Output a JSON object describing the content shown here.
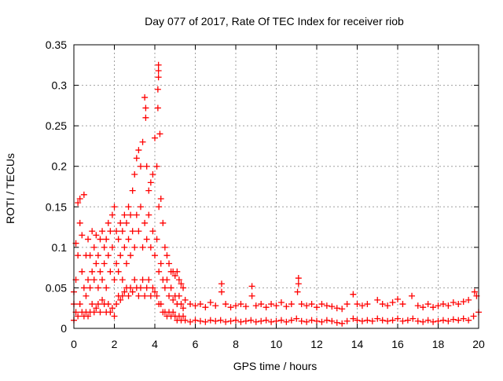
{
  "chart_data": {
    "type": "scatter",
    "title": "Day 077 of 2017, Rate Of TEC Index for receiver riob",
    "xlabel": "GPS time / hours",
    "ylabel": "ROTI / TECUs",
    "xlim": [
      0,
      20
    ],
    "ylim": [
      0,
      0.35
    ],
    "xticks": [
      "0",
      "2",
      "4",
      "6",
      "8",
      "10",
      "12",
      "14",
      "16",
      "18",
      "20"
    ],
    "yticks": [
      "0",
      "0.05",
      "0.1",
      "0.15",
      "0.2",
      "0.25",
      "0.3",
      "0.35"
    ],
    "grid": true,
    "marker": "+",
    "color": "#ff0000",
    "points": [
      [
        0.0,
        0.01
      ],
      [
        0.0,
        0.03
      ],
      [
        0.0,
        0.045
      ],
      [
        0.1,
        0.02
      ],
      [
        0.1,
        0.06
      ],
      [
        0.1,
        0.105
      ],
      [
        0.2,
        0.015
      ],
      [
        0.2,
        0.09
      ],
      [
        0.2,
        0.155
      ],
      [
        0.3,
        0.03
      ],
      [
        0.3,
        0.13
      ],
      [
        0.3,
        0.16
      ],
      [
        0.4,
        0.02
      ],
      [
        0.4,
        0.07
      ],
      [
        0.4,
        0.115
      ],
      [
        0.5,
        0.015
      ],
      [
        0.5,
        0.05
      ],
      [
        0.5,
        0.165
      ],
      [
        0.6,
        0.02
      ],
      [
        0.6,
        0.04
      ],
      [
        0.6,
        0.09
      ],
      [
        0.7,
        0.015
      ],
      [
        0.7,
        0.06
      ],
      [
        0.7,
        0.11
      ],
      [
        0.8,
        0.02
      ],
      [
        0.8,
        0.05
      ],
      [
        0.8,
        0.09
      ],
      [
        0.9,
        0.03
      ],
      [
        0.9,
        0.07
      ],
      [
        0.9,
        0.12
      ],
      [
        1.0,
        0.02
      ],
      [
        1.0,
        0.06
      ],
      [
        1.0,
        0.1
      ],
      [
        1.1,
        0.025
      ],
      [
        1.1,
        0.08
      ],
      [
        1.1,
        0.115
      ],
      [
        1.2,
        0.03
      ],
      [
        1.2,
        0.05
      ],
      [
        1.2,
        0.09
      ],
      [
        1.3,
        0.02
      ],
      [
        1.3,
        0.07
      ],
      [
        1.3,
        0.11
      ],
      [
        1.4,
        0.035
      ],
      [
        1.4,
        0.06
      ],
      [
        1.4,
        0.12
      ],
      [
        1.5,
        0.03
      ],
      [
        1.5,
        0.08
      ],
      [
        1.5,
        0.1
      ],
      [
        1.6,
        0.02
      ],
      [
        1.6,
        0.05
      ],
      [
        1.6,
        0.11
      ],
      [
        1.7,
        0.03
      ],
      [
        1.7,
        0.09
      ],
      [
        1.7,
        0.13
      ],
      [
        1.8,
        0.02
      ],
      [
        1.8,
        0.07
      ],
      [
        1.8,
        0.12
      ],
      [
        1.9,
        0.025
      ],
      [
        1.9,
        0.1
      ],
      [
        1.9,
        0.14
      ],
      [
        2.0,
        0.015
      ],
      [
        2.0,
        0.06
      ],
      [
        2.0,
        0.15
      ],
      [
        2.1,
        0.03
      ],
      [
        2.1,
        0.08
      ],
      [
        2.1,
        0.12
      ],
      [
        2.2,
        0.04
      ],
      [
        2.2,
        0.07
      ],
      [
        2.2,
        0.11
      ],
      [
        2.3,
        0.035
      ],
      [
        2.3,
        0.09
      ],
      [
        2.3,
        0.13
      ],
      [
        2.4,
        0.04
      ],
      [
        2.4,
        0.06
      ],
      [
        2.4,
        0.12
      ],
      [
        2.5,
        0.045
      ],
      [
        2.5,
        0.1
      ],
      [
        2.5,
        0.14
      ],
      [
        2.6,
        0.05
      ],
      [
        2.6,
        0.08
      ],
      [
        2.6,
        0.13
      ],
      [
        2.7,
        0.04
      ],
      [
        2.7,
        0.11
      ],
      [
        2.7,
        0.15
      ],
      [
        2.8,
        0.05
      ],
      [
        2.8,
        0.09
      ],
      [
        2.8,
        0.14
      ],
      [
        2.9,
        0.045
      ],
      [
        2.9,
        0.12
      ],
      [
        2.9,
        0.17
      ],
      [
        3.0,
        0.06
      ],
      [
        3.0,
        0.1
      ],
      [
        3.0,
        0.19
      ],
      [
        3.1,
        0.05
      ],
      [
        3.1,
        0.14
      ],
      [
        3.1,
        0.21
      ],
      [
        3.2,
        0.04
      ],
      [
        3.2,
        0.12
      ],
      [
        3.2,
        0.22
      ],
      [
        3.3,
        0.05
      ],
      [
        3.3,
        0.15
      ],
      [
        3.3,
        0.2
      ],
      [
        3.4,
        0.06
      ],
      [
        3.4,
        0.1
      ],
      [
        3.4,
        0.23
      ],
      [
        3.5,
        0.04
      ],
      [
        3.5,
        0.13
      ],
      [
        3.5,
        0.285
      ],
      [
        3.55,
        0.26
      ],
      [
        3.55,
        0.272
      ],
      [
        3.6,
        0.05
      ],
      [
        3.6,
        0.11
      ],
      [
        3.6,
        0.2
      ],
      [
        3.7,
        0.06
      ],
      [
        3.7,
        0.14
      ],
      [
        3.7,
        0.17
      ],
      [
        3.8,
        0.04
      ],
      [
        3.8,
        0.1
      ],
      [
        3.8,
        0.18
      ],
      [
        3.9,
        0.05
      ],
      [
        3.9,
        0.12
      ],
      [
        3.9,
        0.19
      ],
      [
        4.0,
        0.045
      ],
      [
        4.0,
        0.09
      ],
      [
        4.0,
        0.235
      ],
      [
        4.1,
        0.04
      ],
      [
        4.1,
        0.11
      ],
      [
        4.1,
        0.2
      ],
      [
        4.15,
        0.272
      ],
      [
        4.15,
        0.295
      ],
      [
        4.18,
        0.31
      ],
      [
        4.18,
        0.318
      ],
      [
        4.18,
        0.325
      ],
      [
        4.2,
        0.03
      ],
      [
        4.2,
        0.07
      ],
      [
        4.2,
        0.15
      ],
      [
        4.25,
        0.24
      ],
      [
        4.3,
        0.03
      ],
      [
        4.3,
        0.08
      ],
      [
        4.3,
        0.16
      ],
      [
        4.4,
        0.02
      ],
      [
        4.4,
        0.06
      ],
      [
        4.4,
        0.13
      ],
      [
        4.5,
        0.02
      ],
      [
        4.5,
        0.05
      ],
      [
        4.5,
        0.1
      ],
      [
        4.6,
        0.015
      ],
      [
        4.6,
        0.06
      ],
      [
        4.6,
        0.09
      ],
      [
        4.7,
        0.02
      ],
      [
        4.7,
        0.04
      ],
      [
        4.7,
        0.08
      ],
      [
        4.8,
        0.015
      ],
      [
        4.8,
        0.05
      ],
      [
        4.8,
        0.07
      ],
      [
        4.9,
        0.02
      ],
      [
        4.9,
        0.035
      ],
      [
        4.9,
        0.07
      ],
      [
        5.0,
        0.015
      ],
      [
        5.0,
        0.04
      ],
      [
        5.0,
        0.065
      ],
      [
        5.1,
        0.01
      ],
      [
        5.1,
        0.03
      ],
      [
        5.1,
        0.07
      ],
      [
        5.2,
        0.015
      ],
      [
        5.2,
        0.04
      ],
      [
        5.2,
        0.06
      ],
      [
        5.3,
        0.01
      ],
      [
        5.3,
        0.03
      ],
      [
        5.3,
        0.055
      ],
      [
        5.4,
        0.015
      ],
      [
        5.4,
        0.025
      ],
      [
        5.4,
        0.05
      ],
      [
        5.5,
        0.01
      ],
      [
        5.5,
        0.035
      ],
      [
        5.75,
        0.008
      ],
      [
        5.75,
        0.03
      ],
      [
        6.0,
        0.01
      ],
      [
        6.0,
        0.028
      ],
      [
        6.25,
        0.009
      ],
      [
        6.25,
        0.03
      ],
      [
        6.5,
        0.008
      ],
      [
        6.5,
        0.026
      ],
      [
        6.75,
        0.01
      ],
      [
        6.75,
        0.032
      ],
      [
        7.0,
        0.009
      ],
      [
        7.0,
        0.028
      ],
      [
        7.25,
        0.01
      ],
      [
        7.3,
        0.045
      ],
      [
        7.3,
        0.055
      ],
      [
        7.5,
        0.008
      ],
      [
        7.5,
        0.03
      ],
      [
        7.75,
        0.009
      ],
      [
        7.75,
        0.026
      ],
      [
        8.0,
        0.01
      ],
      [
        8.0,
        0.028
      ],
      [
        8.25,
        0.008
      ],
      [
        8.25,
        0.03
      ],
      [
        8.5,
        0.009
      ],
      [
        8.5,
        0.027
      ],
      [
        8.75,
        0.01
      ],
      [
        8.8,
        0.04
      ],
      [
        8.8,
        0.052
      ],
      [
        9.0,
        0.008
      ],
      [
        9.0,
        0.028
      ],
      [
        9.25,
        0.009
      ],
      [
        9.25,
        0.03
      ],
      [
        9.5,
        0.01
      ],
      [
        9.5,
        0.026
      ],
      [
        9.75,
        0.008
      ],
      [
        9.75,
        0.03
      ],
      [
        10.0,
        0.009
      ],
      [
        10.0,
        0.028
      ],
      [
        10.25,
        0.01
      ],
      [
        10.25,
        0.032
      ],
      [
        10.5,
        0.008
      ],
      [
        10.5,
        0.027
      ],
      [
        10.75,
        0.01
      ],
      [
        10.75,
        0.03
      ],
      [
        11.0,
        0.012
      ],
      [
        11.05,
        0.045
      ],
      [
        11.1,
        0.055
      ],
      [
        11.1,
        0.062
      ],
      [
        11.25,
        0.009
      ],
      [
        11.25,
        0.03
      ],
      [
        11.5,
        0.008
      ],
      [
        11.5,
        0.028
      ],
      [
        11.75,
        0.01
      ],
      [
        11.75,
        0.03
      ],
      [
        12.0,
        0.009
      ],
      [
        12.0,
        0.026
      ],
      [
        12.25,
        0.008
      ],
      [
        12.25,
        0.03
      ],
      [
        12.5,
        0.01
      ],
      [
        12.5,
        0.028
      ],
      [
        12.75,
        0.009
      ],
      [
        12.75,
        0.027
      ],
      [
        13.0,
        0.007
      ],
      [
        13.0,
        0.025
      ],
      [
        13.25,
        0.006
      ],
      [
        13.25,
        0.024
      ],
      [
        13.5,
        0.009
      ],
      [
        13.5,
        0.03
      ],
      [
        13.8,
        0.012
      ],
      [
        13.8,
        0.042
      ],
      [
        14.0,
        0.01
      ],
      [
        14.0,
        0.03
      ],
      [
        14.25,
        0.009
      ],
      [
        14.25,
        0.028
      ],
      [
        14.5,
        0.01
      ],
      [
        14.5,
        0.03
      ],
      [
        14.75,
        0.009
      ],
      [
        15.0,
        0.035
      ],
      [
        15.0,
        0.012
      ],
      [
        15.25,
        0.01
      ],
      [
        15.25,
        0.03
      ],
      [
        15.5,
        0.009
      ],
      [
        15.5,
        0.028
      ],
      [
        15.75,
        0.01
      ],
      [
        15.75,
        0.032
      ],
      [
        16.0,
        0.012
      ],
      [
        16.0,
        0.036
      ],
      [
        16.25,
        0.009
      ],
      [
        16.25,
        0.03
      ],
      [
        16.5,
        0.01
      ],
      [
        16.7,
        0.04
      ],
      [
        16.75,
        0.012
      ],
      [
        17.0,
        0.009
      ],
      [
        17.0,
        0.028
      ],
      [
        17.25,
        0.008
      ],
      [
        17.25,
        0.026
      ],
      [
        17.5,
        0.01
      ],
      [
        17.5,
        0.03
      ],
      [
        17.75,
        0.008
      ],
      [
        17.75,
        0.026
      ],
      [
        18.0,
        0.009
      ],
      [
        18.0,
        0.028
      ],
      [
        18.25,
        0.01
      ],
      [
        18.25,
        0.03
      ],
      [
        18.5,
        0.009
      ],
      [
        18.5,
        0.028
      ],
      [
        18.75,
        0.011
      ],
      [
        18.75,
        0.032
      ],
      [
        19.0,
        0.01
      ],
      [
        19.0,
        0.03
      ],
      [
        19.25,
        0.012
      ],
      [
        19.25,
        0.033
      ],
      [
        19.5,
        0.01
      ],
      [
        19.5,
        0.035
      ],
      [
        19.75,
        0.015
      ],
      [
        19.8,
        0.045
      ],
      [
        19.9,
        0.04
      ],
      [
        20.0,
        0.02
      ]
    ]
  }
}
